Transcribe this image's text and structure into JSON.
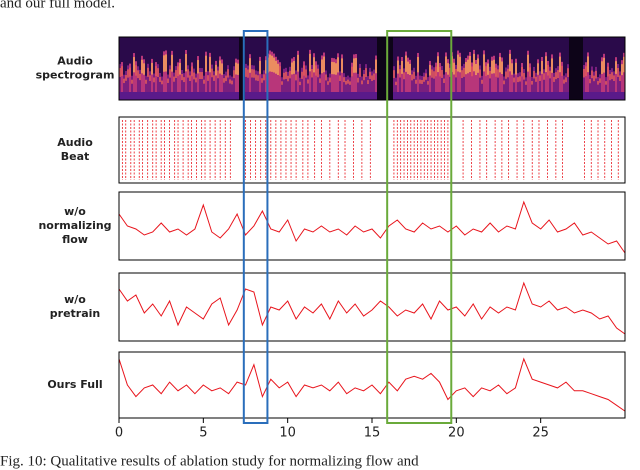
{
  "top_text": "and our full model.",
  "caption": "Fig. 10: Qualitative results of ablation study for normalizing flow and",
  "chart_data": {
    "type": "line",
    "color": "#e8141c",
    "xlim": [
      0,
      30
    ],
    "xticks": [
      0,
      5,
      10,
      15,
      20,
      25
    ],
    "x": [
      0,
      0.5,
      1,
      1.5,
      2,
      2.5,
      3,
      3.5,
      4,
      4.5,
      5,
      5.5,
      6,
      6.5,
      7,
      7.5,
      8,
      8.5,
      9,
      9.5,
      10,
      10.5,
      11,
      11.5,
      12,
      12.5,
      13,
      13.5,
      14,
      14.5,
      15,
      15.5,
      16,
      16.5,
      17,
      17.5,
      18,
      18.5,
      19,
      19.5,
      20,
      20.5,
      21,
      21.5,
      22,
      22.5,
      23,
      23.5,
      24,
      24.5,
      25,
      25.5,
      26,
      26.5,
      27,
      27.5,
      28,
      28.5,
      29,
      29.5,
      30
    ],
    "highlights": [
      {
        "xlim": [
          7.4,
          8.8
        ],
        "color": "#2a6ebb"
      },
      {
        "xlim": [
          15.9,
          19.7
        ],
        "color": "#6aaa3a"
      }
    ],
    "panels": [
      {
        "label": [
          "Audio",
          "spectrogram"
        ]
      },
      {
        "label": [
          "Audio",
          "Beat"
        ],
        "beats": [
          0.2,
          0.4,
          0.7,
          0.9,
          1.2,
          1.4,
          1.7,
          2.0,
          2.2,
          2.5,
          2.7,
          3.0,
          3.3,
          3.5,
          3.8,
          4.1,
          4.3,
          4.6,
          4.9,
          5.1,
          5.4,
          5.7,
          6.0,
          6.3,
          6.6,
          7.5,
          7.8,
          8.1,
          8.4,
          8.7,
          9.0,
          9.3,
          9.6,
          9.9,
          10.2,
          10.5,
          10.9,
          11.2,
          11.6,
          12.0,
          12.5,
          13.0,
          13.4,
          13.9,
          14.4,
          14.9,
          16.3,
          16.5,
          16.7,
          16.9,
          17.1,
          17.3,
          17.5,
          17.7,
          17.9,
          18.1,
          18.3,
          18.5,
          18.7,
          18.9,
          19.1,
          19.3,
          19.5,
          20.4,
          20.9,
          21.4,
          21.8,
          22.3,
          22.7,
          23.1,
          23.6,
          24.0,
          24.5,
          24.9,
          25.4,
          25.9,
          26.3,
          27.6,
          28.0,
          28.4,
          28.8,
          29.2,
          29.6
        ]
      },
      {
        "label": [
          "w/o",
          "normalizing",
          "flow"
        ],
        "values": [
          0.7,
          0.5,
          0.45,
          0.35,
          0.4,
          0.55,
          0.4,
          0.45,
          0.35,
          0.45,
          0.85,
          0.4,
          0.3,
          0.45,
          0.7,
          0.35,
          0.5,
          0.75,
          0.45,
          0.4,
          0.6,
          0.25,
          0.45,
          0.4,
          0.5,
          0.4,
          0.45,
          0.35,
          0.5,
          0.4,
          0.45,
          0.3,
          0.5,
          0.6,
          0.45,
          0.4,
          0.55,
          0.45,
          0.5,
          0.4,
          0.5,
          0.35,
          0.45,
          0.4,
          0.55,
          0.4,
          0.5,
          0.45,
          0.9,
          0.55,
          0.45,
          0.6,
          0.4,
          0.45,
          0.55,
          0.35,
          0.4,
          0.3,
          0.2,
          0.25,
          0.05
        ]
      },
      {
        "label": [
          "w/o",
          "pretrain"
        ],
        "values": [
          0.8,
          0.6,
          0.7,
          0.4,
          0.55,
          0.35,
          0.6,
          0.2,
          0.5,
          0.4,
          0.3,
          0.55,
          0.65,
          0.2,
          0.45,
          0.8,
          0.75,
          0.2,
          0.5,
          0.45,
          0.6,
          0.3,
          0.5,
          0.4,
          0.55,
          0.3,
          0.6,
          0.4,
          0.55,
          0.35,
          0.45,
          0.6,
          0.5,
          0.35,
          0.45,
          0.4,
          0.55,
          0.3,
          0.6,
          0.45,
          0.5,
          0.35,
          0.55,
          0.3,
          0.5,
          0.4,
          0.5,
          0.45,
          0.9,
          0.55,
          0.5,
          0.6,
          0.45,
          0.5,
          0.4,
          0.45,
          0.4,
          0.3,
          0.35,
          0.15,
          0.05
        ]
      },
      {
        "label": [
          "Ours Full"
        ],
        "values": [
          0.95,
          0.5,
          0.3,
          0.45,
          0.5,
          0.35,
          0.55,
          0.4,
          0.5,
          0.35,
          0.5,
          0.4,
          0.45,
          0.35,
          0.55,
          0.5,
          0.85,
          0.3,
          0.6,
          0.45,
          0.55,
          0.3,
          0.5,
          0.45,
          0.5,
          0.4,
          0.55,
          0.35,
          0.45,
          0.4,
          0.5,
          0.35,
          0.55,
          0.4,
          0.6,
          0.65,
          0.6,
          0.7,
          0.55,
          0.25,
          0.4,
          0.45,
          0.3,
          0.45,
          0.4,
          0.5,
          0.35,
          0.45,
          0.95,
          0.6,
          0.55,
          0.5,
          0.45,
          0.55,
          0.4,
          0.4,
          0.35,
          0.3,
          0.25,
          0.15,
          0.05
        ]
      }
    ]
  }
}
